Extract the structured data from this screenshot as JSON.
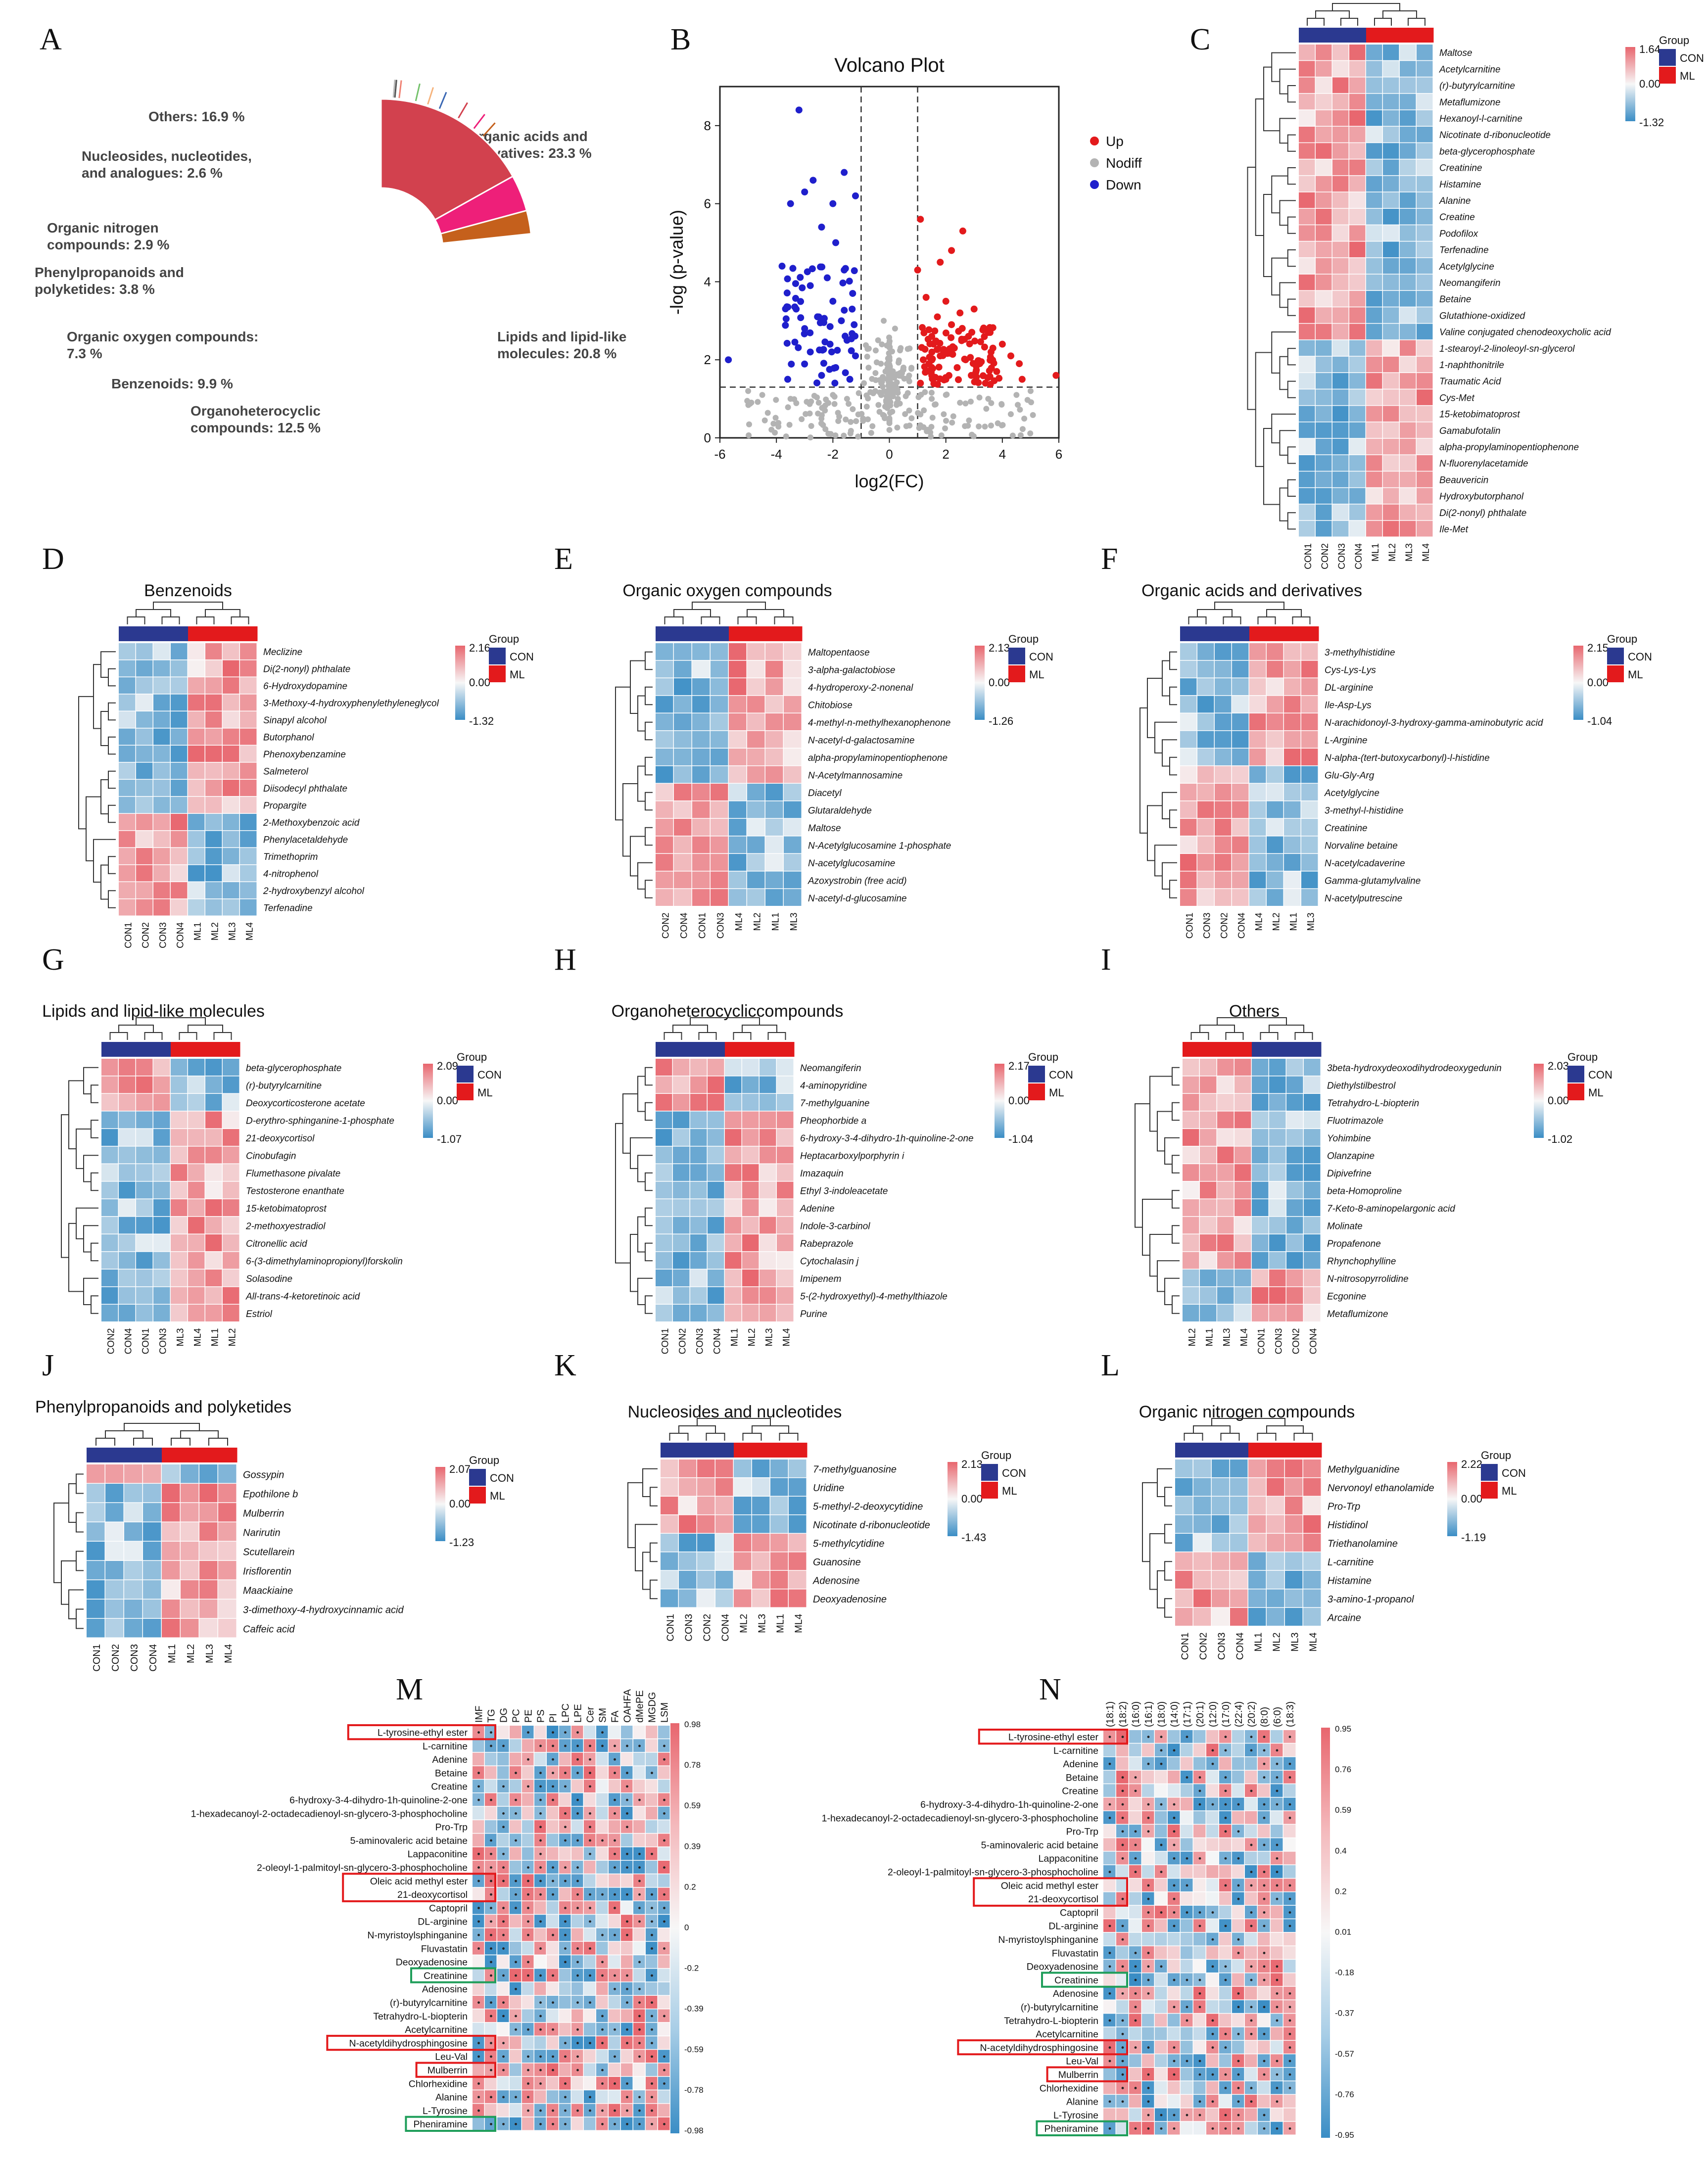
{
  "colors": {
    "con": "#2b3990",
    "ml": "#e31a1c",
    "high": "#e8666e",
    "mid": "#f7f7f7",
    "low": "#3a8dc5",
    "up": "#e31a1c",
    "nodiff": "#b3b3b3",
    "down": "#1f1fcc",
    "highlight_red": "#e31a1c",
    "highlight_green": "#1f9e5a"
  },
  "chart_data": [
    {
      "panel": "A",
      "type": "pie",
      "slices": [
        {
          "label": "Organic acids and derivatives: 23.3 %",
          "value": 23.3,
          "color": "#c5601c"
        },
        {
          "label": "Lipids and lipid-like molecules: 20.8 %",
          "value": 20.8,
          "color": "#ee1f79"
        },
        {
          "label": "Organoheterocyclic compounds: 12.5 %",
          "value": 12.5,
          "color": "#3a67b3"
        },
        {
          "label": "Benzenoids: 9.9 %",
          "value": 9.9,
          "color": "#f6b37c"
        },
        {
          "label": "Organic oxygen compounds: 7.3 %",
          "value": 7.3,
          "color": "#74c26b"
        },
        {
          "label": "Phenylpropanoids and polyketides: 3.8 %",
          "value": 3.8,
          "color": "#f08072"
        },
        {
          "label": "Organic nitrogen compounds: 2.9 %",
          "value": 2.9,
          "color": "#555555"
        },
        {
          "label": "Nucleosides, nucleotides, and analogues: 2.6 %",
          "value": 2.6,
          "color": "#b8b8b8"
        },
        {
          "label": "Others: 16.9 %",
          "value": 16.9,
          "color": "#d2414e"
        }
      ]
    },
    {
      "panel": "B",
      "type": "scatter",
      "title": "Volcano Plot",
      "xlabel": "log2(FC)",
      "ylabel": "-log (p-value)",
      "xlim": [
        -6,
        6
      ],
      "ylim": [
        0,
        9
      ],
      "xticks": [
        -6,
        -4,
        -2,
        0,
        2,
        4,
        6
      ],
      "yticks": [
        0,
        2,
        4,
        6,
        8
      ],
      "thresholds": {
        "x": [
          -1,
          1
        ],
        "y": 1.3
      },
      "legend": [
        "Up",
        "Nodiff",
        "Down"
      ],
      "down_points": [
        [
          -3.2,
          8.4
        ],
        [
          -2.7,
          6.6
        ],
        [
          -3.0,
          6.3
        ],
        [
          -3.5,
          6.0
        ],
        [
          -1.6,
          6.8
        ],
        [
          -2.0,
          6.0
        ],
        [
          -1.2,
          6.2
        ],
        [
          -2.4,
          5.4
        ],
        [
          -1.9,
          5.0
        ],
        [
          -3.8,
          4.4
        ],
        [
          -2.2,
          4.1
        ],
        [
          -1.6,
          4.3
        ],
        [
          -2.8,
          3.9
        ],
        [
          -3.3,
          3.3
        ],
        [
          -2.0,
          3.5
        ],
        [
          -1.3,
          3.7
        ],
        [
          -1.7,
          3.0
        ],
        [
          -2.5,
          3.1
        ],
        [
          -3.0,
          2.8
        ],
        [
          -1.5,
          2.5
        ],
        [
          -2.1,
          2.4
        ],
        [
          -2.8,
          2.2
        ],
        [
          -3.6,
          1.5
        ],
        [
          -1.2,
          2.1
        ],
        [
          -1.9,
          1.8
        ],
        [
          -2.4,
          1.6
        ],
        [
          -5.7,
          2.0
        ],
        [
          -1.4,
          1.5
        ]
      ],
      "up_points": [
        [
          1.1,
          5.6
        ],
        [
          2.6,
          5.3
        ],
        [
          1.0,
          4.3
        ],
        [
          1.8,
          4.5
        ],
        [
          2.2,
          4.8
        ],
        [
          3.0,
          3.3
        ],
        [
          1.3,
          3.6
        ],
        [
          2.0,
          3.5
        ],
        [
          2.5,
          3.2
        ],
        [
          3.5,
          2.7
        ],
        [
          4.0,
          2.4
        ],
        [
          1.5,
          2.6
        ],
        [
          2.3,
          2.3
        ],
        [
          1.2,
          2.0
        ],
        [
          1.8,
          2.1
        ],
        [
          2.7,
          2.0
        ],
        [
          3.2,
          1.9
        ],
        [
          3.8,
          1.7
        ],
        [
          4.3,
          2.1
        ],
        [
          1.5,
          1.6
        ],
        [
          2.0,
          1.5
        ],
        [
          2.9,
          1.6
        ],
        [
          5.9,
          1.6
        ],
        [
          3.4,
          1.4
        ],
        [
          4.7,
          1.5
        ],
        [
          1.1,
          1.4
        ],
        [
          2.4,
          1.8
        ],
        [
          1.7,
          3.1
        ],
        [
          2.8,
          2.6
        ],
        [
          3.6,
          2.2
        ],
        [
          4.6,
          1.9
        ],
        [
          1.4,
          1.9
        ],
        [
          2.2,
          2.9
        ]
      ],
      "nodiff_points": [
        [
          -0.5,
          1.2
        ],
        [
          0.3,
          1.0
        ],
        [
          0.0,
          0.5
        ],
        [
          -0.8,
          0.8
        ],
        [
          0.7,
          0.7
        ],
        [
          -1.5,
          1.0
        ],
        [
          1.5,
          1.0
        ],
        [
          -2.5,
          0.9
        ],
        [
          2.5,
          0.9
        ],
        [
          -0.3,
          1.9
        ],
        [
          0.4,
          2.3
        ],
        [
          -0.2,
          3.0
        ],
        [
          0.2,
          2.8
        ],
        [
          -3.5,
          1.0
        ],
        [
          3.5,
          1.0
        ],
        [
          -4.5,
          1.1
        ],
        [
          4.5,
          1.1
        ],
        [
          -0.6,
          0.3
        ],
        [
          0.6,
          0.3
        ],
        [
          0.1,
          1.6
        ],
        [
          -1.1,
          0.6
        ],
        [
          1.1,
          0.6
        ],
        [
          -2.0,
          1.1
        ],
        [
          2.0,
          1.1
        ],
        [
          -5.0,
          1.2
        ],
        [
          5.0,
          1.2
        ],
        [
          0.0,
          2.0
        ],
        [
          -0.4,
          2.5
        ],
        [
          0.5,
          1.8
        ],
        [
          -0.9,
          1.4
        ]
      ]
    },
    {
      "panel": "C",
      "type": "heatmap",
      "columns": [
        "CON1",
        "CON2",
        "CON3",
        "CON4",
        "ML1",
        "ML2",
        "ML3",
        "ML4"
      ],
      "groups": [
        "CON",
        "CON",
        "CON",
        "CON",
        "ML",
        "ML",
        "ML",
        "ML"
      ],
      "legend_max": "1.64",
      "legend_mid": "0.00",
      "legend_min": "-1.32",
      "rows": [
        "Maltose",
        "Acetylcarnitine",
        "(r)-butyrylcarnitine",
        "Metaflumizone",
        "Hexanoyl-l-carnitine",
        "Nicotinate d-ribonucleotide",
        "beta-glycerophosphate",
        "Creatinine",
        "Histamine",
        "Alanine",
        "Creatine",
        "Podofilox",
        "Terfenadine",
        "Acetylglycine",
        "Neomangiferin",
        "Betaine",
        "Glutathione-oxidized",
        "Valine conjugated chenodeoxycholic acid",
        "1-stearoyl-2-linoleoyl-sn-glycerol",
        "1-naphthonitrile",
        "Traumatic Acid",
        "Cys-Met",
        "15-ketobimatoprost",
        "Gamabufotalin",
        "alpha-propylaminopentiophenone",
        "N-fluorenylacetamide",
        "Beauvericin",
        "Hydroxybutorphanol",
        "Di(2-nonyl) phthalate",
        "Ile-Met"
      ],
      "split": 18
    },
    {
      "panel": "D",
      "type": "heatmap",
      "title": "Benzenoids",
      "columns": [
        "CON1",
        "CON2",
        "CON3",
        "CON4",
        "ML1",
        "ML2",
        "ML3",
        "ML4"
      ],
      "groups": [
        "CON",
        "CON",
        "CON",
        "CON",
        "ML",
        "ML",
        "ML",
        "ML"
      ],
      "legend_max": "2.16",
      "legend_mid": "0.00",
      "legend_min": "-1.32",
      "rows": [
        "Meclizine",
        "Di(2-nonyl) phthalate",
        "6-Hydroxydopamine",
        "3-Methoxy-4-hydroxyphenylethyleneglycol",
        "Sinapyl alcohol",
        "Butorphanol",
        "Phenoxybenzamine",
        "Salmeterol",
        "Diisodecyl phthalate",
        "Propargite",
        "2-Methoxybenzoic acid",
        "Phenylacetaldehyde",
        "Trimethoprim",
        "4-nitrophenol",
        "2-hydroxybenzyl alcohol",
        "Terfenadine"
      ],
      "split": 10
    },
    {
      "panel": "E",
      "type": "heatmap",
      "title": "Organic oxygen compounds",
      "columns": [
        "CON2",
        "CON4",
        "CON1",
        "CON3",
        "ML4",
        "ML2",
        "ML1",
        "ML3"
      ],
      "groups": [
        "CON",
        "CON",
        "CON",
        "CON",
        "ML",
        "ML",
        "ML",
        "ML"
      ],
      "legend_max": "2.13",
      "legend_mid": "0.00",
      "legend_min": "-1.26",
      "rows": [
        "Maltopentaose",
        "3-alpha-galactobiose",
        "4-hydroperoxy-2-nonenal",
        "Chitobiose",
        "4-methyl-n-methylhexanophenone",
        "N-acetyl-d-galactosamine",
        "alpha-propylaminopentiophenone",
        "N-Acetylmannosamine",
        "Diacetyl",
        "Glutaraldehyde",
        "Maltose",
        "N-Acetylglucosamine 1-phosphate",
        "N-acetylglucosamine",
        "Azoxystrobin (free acid)",
        "N-acetyl-d-glucosamine"
      ],
      "split": 8
    },
    {
      "panel": "F",
      "type": "heatmap",
      "title": "Organic acids and derivatives",
      "columns": [
        "CON1",
        "CON3",
        "CON2",
        "CON4",
        "ML4",
        "ML2",
        "ML1",
        "ML3"
      ],
      "groups": [
        "CON",
        "CON",
        "CON",
        "CON",
        "ML",
        "ML",
        "ML",
        "ML"
      ],
      "legend_max": "2.15",
      "legend_mid": "0.00",
      "legend_min": "-1.04",
      "rows": [
        "3-methylhistidine",
        "Cys-Lys-Lys",
        "DL-arginine",
        "Ile-Asp-Lys",
        "N-arachidonoyl-3-hydroxy-gamma-aminobutyric acid",
        "L-Arginine",
        "N-alpha-(tert-butoxycarbonyl)-l-histidine",
        "Glu-Gly-Arg",
        "Acetylglycine",
        "3-methyl-l-histidine",
        "Creatinine",
        "Norvaline betaine",
        "N-acetylcadaverine",
        "Gamma-glutamylvaline",
        "N-acetylputrescine"
      ],
      "split": 7
    },
    {
      "panel": "G",
      "type": "heatmap",
      "title": "Lipids and lipid-like molecules",
      "columns": [
        "CON2",
        "CON4",
        "CON1",
        "CON3",
        "ML3",
        "ML4",
        "ML1",
        "ML2"
      ],
      "groups": [
        "CON",
        "CON",
        "CON",
        "CON",
        "ML",
        "ML",
        "ML",
        "ML"
      ],
      "legend_max": "2.09",
      "legend_mid": "0.00",
      "legend_min": "-1.07",
      "rows": [
        "beta-glycerophosphate",
        "(r)-butyrylcarnitine",
        "Deoxycorticosterone acetate",
        "D-erythro-sphinganine-1-phosphate",
        "21-deoxycortisol",
        "Cinobufagin",
        "Flumethasone pivalate",
        "Testosterone enanthate",
        "15-ketobimatoprost",
        "2-methoxyestradiol",
        "Citronellic acid",
        "6-(3-dimethylaminopropionyl)forskolin",
        "Solasodine",
        "All-trans-4-ketoretinoic acid",
        "Estriol"
      ],
      "split": 3
    },
    {
      "panel": "H",
      "type": "heatmap",
      "title": "Organoheterocycliccompounds",
      "columns": [
        "CON1",
        "CON2",
        "CON3",
        "CON4",
        "ML1",
        "ML2",
        "ML3",
        "ML4"
      ],
      "groups": [
        "CON",
        "CON",
        "CON",
        "CON",
        "ML",
        "ML",
        "ML",
        "ML"
      ],
      "legend_max": "2.17",
      "legend_mid": "0.00",
      "legend_min": "-1.04",
      "rows": [
        "Neomangiferin",
        "4-aminopyridine",
        "7-methylguanine",
        "Pheophorbide a",
        "6-hydroxy-3-4-dihydro-1h-quinoline-2-one",
        "Heptacarboxylporphyrin i",
        "Imazaquin",
        "Ethyl 3-indoleacetate",
        "Adenine",
        "Indole-3-carbinol",
        "Rabeprazole",
        "Cytochalasin j",
        "Imipenem",
        "5-(2-hydroxyethyl)-4-methylthiazole",
        "Purine"
      ],
      "split": 3
    },
    {
      "panel": "I",
      "type": "heatmap",
      "title": "Others",
      "columns": [
        "ML2",
        "ML1",
        "ML3",
        "ML4",
        "CON1",
        "CON3",
        "CON2",
        "CON4"
      ],
      "groups": [
        "ML",
        "ML",
        "ML",
        "ML",
        "CON",
        "CON",
        "CON",
        "CON"
      ],
      "legend_max": "2.03",
      "legend_mid": "0.00",
      "legend_min": "-1.02",
      "rows": [
        "3beta-hydroxydeoxodihydrodeoxygedunin",
        "Diethylstilbestrol",
        "Tetrahydro-L-biopterin",
        "Fluotrimazole",
        "Yohimbine",
        "Olanzapine",
        "Dipivefrine",
        "beta-Homoproline",
        "7-Keto-8-aminopelargonic acid",
        "Molinate",
        "Propafenone",
        "Rhynchophylline",
        "N-nitrosopyrrolidine",
        "Ecgonine",
        "Metaflumizone"
      ],
      "split": 12
    },
    {
      "panel": "J",
      "type": "heatmap",
      "title": "Phenylpropanoids and polyketides",
      "columns": [
        "CON1",
        "CON2",
        "CON3",
        "CON4",
        "ML1",
        "ML2",
        "ML3",
        "ML4"
      ],
      "groups": [
        "CON",
        "CON",
        "CON",
        "CON",
        "ML",
        "ML",
        "ML",
        "ML"
      ],
      "legend_max": "2.07",
      "legend_mid": "0.00",
      "legend_min": "-1.23",
      "rows": [
        "Gossypin",
        "Epothilone b",
        "Mulberrin",
        "Narirutin",
        "Scutellarein",
        "Irisflorentin",
        "Maackiaine",
        "3-dimethoxy-4-hydroxycinnamic acid",
        "Caffeic acid"
      ],
      "split": 1
    },
    {
      "panel": "K",
      "type": "heatmap",
      "title": "Nucleosides and nucleotides",
      "columns": [
        "CON1",
        "CON3",
        "CON2",
        "CON4",
        "ML2",
        "ML3",
        "ML1",
        "ML4"
      ],
      "groups": [
        "CON",
        "CON",
        "CON",
        "CON",
        "ML",
        "ML",
        "ML",
        "ML"
      ],
      "legend_max": "2.13",
      "legend_mid": "0.00",
      "legend_min": "-1.43",
      "rows": [
        "7-methylguanosine",
        "Uridine",
        "5-methyl-2-deoxycytidine",
        "Nicotinate d-ribonucleotide",
        "5-methylcytidine",
        "Guanosine",
        "Adenosine",
        "Deoxyadenosine"
      ],
      "split": 4
    },
    {
      "panel": "L",
      "type": "heatmap",
      "title": "Organic nitrogen compounds",
      "columns": [
        "CON1",
        "CON2",
        "CON3",
        "CON4",
        "ML1",
        "ML2",
        "ML3",
        "ML4"
      ],
      "groups": [
        "CON",
        "CON",
        "CON",
        "CON",
        "ML",
        "ML",
        "ML",
        "ML"
      ],
      "legend_max": "2.22",
      "legend_mid": "0.00",
      "legend_min": "-1.19",
      "rows": [
        "Methylguanidine",
        "Nervonoyl ethanolamide",
        "Pro-Trp",
        "Histidinol",
        "Triethanolamine",
        "L-carnitine",
        "Histamine",
        "3-amino-1-propanol",
        "Arcaine"
      ],
      "split": 5
    },
    {
      "panel": "M",
      "type": "heatmap",
      "columns": [
        "IMF",
        "TG",
        "DG",
        "PC",
        "PE",
        "PS",
        "PI",
        "LPC",
        "LPE",
        "Cer",
        "SM",
        "FA",
        "OAHFA",
        "dMePE",
        "MGDG",
        "LSM"
      ],
      "legend_ticks": [
        "0.98",
        "0.78",
        "0.59",
        "0.39",
        "0.2",
        "0",
        "-0.2",
        "-0.39",
        "-0.59",
        "-0.78",
        "-0.98"
      ],
      "rows": [
        "L-tyrosine-ethyl ester",
        "L-carnitine",
        "Adenine",
        "Betaine",
        "Creatine",
        "6-hydroxy-3-4-dihydro-1h-quinoline-2-one",
        "1-hexadecanoyl-2-octadecadienoyl-sn-glycero-3-phosphocholine",
        "Pro-Trp",
        "5-aminovaleric acid betaine",
        "Lappaconitine",
        "2-oleoyl-1-palmitoyl-sn-glycero-3-phosphocholine",
        "Oleic acid methyl ester",
        "21-deoxycortisol",
        "Captopril",
        "DL-arginine",
        "N-myristoylsphinganine",
        "Fluvastatin",
        "Deoxyadenosine",
        "Creatinine",
        "Adenosine",
        "(r)-butyrylcarnitine",
        "Tetrahydro-L-biopterin",
        "Acetylcarnitine",
        "N-acetyldihydrosphingosine",
        "Leu-Val",
        "Mulberrin",
        "Chlorhexidine",
        "Alanine",
        "L-Tyrosine",
        "Pheniramine"
      ],
      "red_boxes": [
        [
          0,
          0
        ],
        [
          11,
          12
        ],
        [
          23,
          23
        ],
        [
          25,
          25
        ]
      ],
      "green_boxes": [
        [
          18,
          18
        ],
        [
          29,
          29
        ]
      ]
    },
    {
      "panel": "N",
      "type": "heatmap",
      "columns": [
        "(18:1)",
        "(18:2)",
        "(16:0)",
        "(16:1)",
        "(18:0)",
        "(14:0)",
        "(17:1)",
        "(20:1)",
        "(12:0)",
        "(17:0)",
        "(22:4)",
        "(20:2)",
        "(8:0)",
        "(6:0)",
        "(18:3)"
      ],
      "legend_ticks": [
        "0.95",
        "0.76",
        "0.59",
        "0.4",
        "0.2",
        "0.01",
        "-0.18",
        "-0.37",
        "-0.57",
        "-0.76",
        "-0.95"
      ],
      "rows": [
        "L-tyrosine-ethyl ester",
        "L-carnitine",
        "Adenine",
        "Betaine",
        "Creatine",
        "6-hydroxy-3-4-dihydro-1h-quinoline-2-one",
        "1-hexadecanoyl-2-octadecadienoyl-sn-glycero-3-phosphocholine",
        "Pro-Trp",
        "5-aminovaleric acid betaine",
        "Lappaconitine",
        "2-oleoyl-1-palmitoyl-sn-glycero-3-phosphocholine",
        "Oleic acid methyl ester",
        "21-deoxycortisol",
        "Captopril",
        "DL-arginine",
        "N-myristoylsphinganine",
        "Fluvastatin",
        "Deoxyadenosine",
        "Creatinine",
        "Adenosine",
        "(r)-butyrylcarnitine",
        "Tetrahydro-L-biopterin",
        "Acetylcarnitine",
        "N-acetyldihydrosphingosine",
        "Leu-Val",
        "Mulberrin",
        "Chlorhexidine",
        "Alanine",
        "L-Tyrosine",
        "Pheniramine"
      ],
      "red_boxes": [
        [
          0,
          0
        ],
        [
          11,
          12
        ],
        [
          23,
          23
        ],
        [
          25,
          25
        ]
      ],
      "green_boxes": [
        [
          18,
          18
        ],
        [
          29,
          29
        ]
      ]
    }
  ]
}
